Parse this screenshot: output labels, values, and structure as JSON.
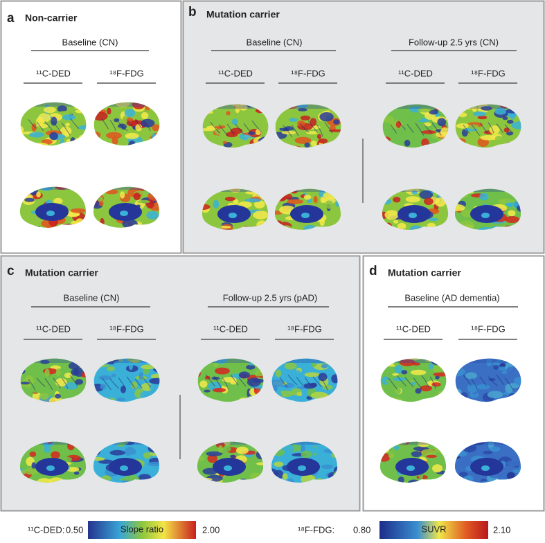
{
  "panels": [
    {
      "label": "a",
      "title": "Non-carrier",
      "groups": [
        {
          "heading": "Baseline (CN)",
          "columns": [
            "¹¹C-DED",
            "¹⁸F-FDG"
          ]
        }
      ]
    },
    {
      "label": "b",
      "title": "Mutation carrier",
      "groups": [
        {
          "heading": "Baseline (CN)",
          "columns": [
            "¹¹C-DED",
            "¹⁸F-FDG"
          ]
        },
        {
          "heading": "Follow-up 2.5 yrs (CN)",
          "columns": [
            "¹¹C-DED",
            "¹⁸F-FDG"
          ]
        }
      ]
    },
    {
      "label": "c",
      "title": "Mutation carrier",
      "groups": [
        {
          "heading": "Baseline (CN)",
          "columns": [
            "¹¹C-DED",
            "¹⁸F-FDG"
          ]
        },
        {
          "heading": "Follow-up 2.5 yrs (pAD)",
          "columns": [
            "¹¹C-DED",
            "¹⁸F-FDG"
          ]
        }
      ]
    },
    {
      "label": "d",
      "title": "Mutation carrier",
      "groups": [
        {
          "heading": "Baseline (AD dementia)",
          "columns": [
            "¹¹C-DED",
            "¹⁸F-FDG"
          ]
        }
      ]
    }
  ],
  "colorbars": [
    {
      "tracer": "¹¹C-DED:",
      "min": "0.50",
      "caption": "Slope ratio",
      "max": "2.00"
    },
    {
      "tracer": "¹⁸F-FDG:",
      "min": "0.80",
      "caption": "SUVR",
      "max": "2.10"
    }
  ]
}
